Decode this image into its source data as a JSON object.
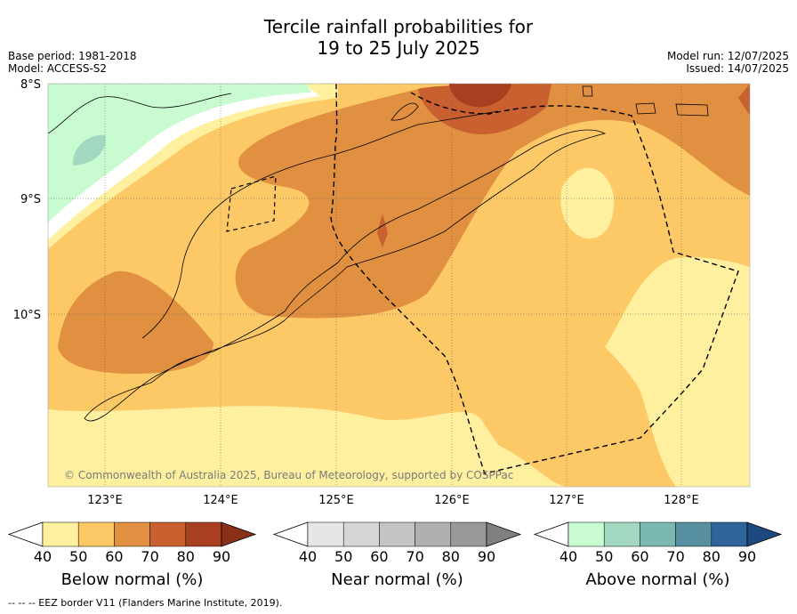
{
  "title_line1": "Tercile rainfall probabilities for",
  "title_line2": "19 to 25 July 2025",
  "meta_left": [
    "Base period: 1981-2018",
    "Model: ACCESS-S2"
  ],
  "meta_right": [
    "Model run: 12/07/2025",
    "Issued: 14/07/2025"
  ],
  "map": {
    "lon_range": [
      122.5,
      128.6
    ],
    "lat_range": [
      -11.5,
      -8.0
    ],
    "lon_ticks": [
      "123°E",
      "124°E",
      "125°E",
      "126°E",
      "127°E",
      "128°E"
    ],
    "lat_ticks": [
      "8°S",
      "9°S",
      "10°S"
    ],
    "copyright": "© Commonwealth of Australia 2025, Bureau of Meteorology, supported by COSPPac",
    "grid": true
  },
  "colorbars": [
    {
      "label": "Below normal (%)",
      "ticks": [
        "40",
        "50",
        "60",
        "70",
        "80",
        "90"
      ],
      "colors": [
        "#ffffff",
        "#fff0a0",
        "#fdc866",
        "#e09040",
        "#c86030",
        "#a84020",
        "#8a3018"
      ]
    },
    {
      "label": "Near normal (%)",
      "ticks": [
        "40",
        "50",
        "60",
        "70",
        "80",
        "90"
      ],
      "colors": [
        "#ffffff",
        "#e6e6e6",
        "#d6d6d6",
        "#c4c4c4",
        "#b0b0b0",
        "#999999",
        "#808080"
      ]
    },
    {
      "label": "Above normal (%)",
      "ticks": [
        "40",
        "50",
        "60",
        "70",
        "80",
        "90"
      ],
      "colors": [
        "#ffffff",
        "#c8fcd0",
        "#a2d8c0",
        "#7ab8b0",
        "#5690a0",
        "#2e6498",
        "#1c4a80"
      ]
    }
  ],
  "footer": "-- -- -- EEZ border V11 (Flanders Marine Institute, 2019)."
}
